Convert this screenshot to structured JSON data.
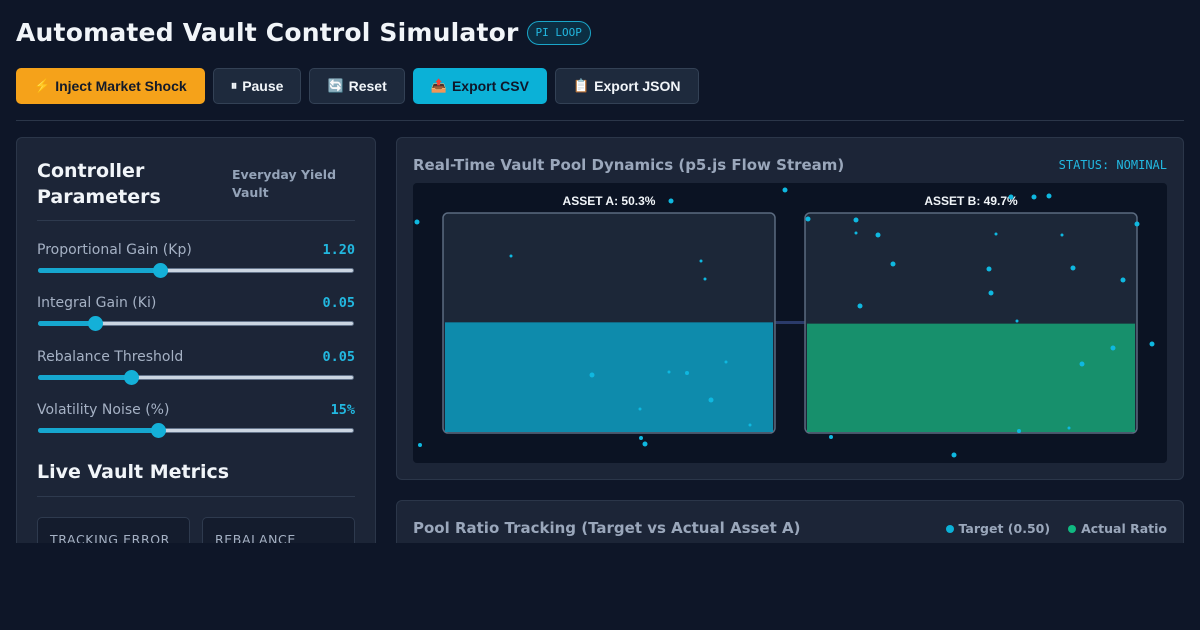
{
  "header": {
    "title": "Automated Vault Control Simulator",
    "badge": "PI LOOP"
  },
  "toolbar": {
    "shock": {
      "icon": "⚡",
      "label": "Inject Market Shock"
    },
    "pause": {
      "icon": "⏸",
      "label": "Pause"
    },
    "reset": {
      "icon": "🔄",
      "label": "Reset"
    },
    "export_csv": {
      "icon": "📤",
      "label": "Export CSV"
    },
    "export_json": {
      "icon": "📋",
      "label": "Export JSON"
    }
  },
  "controller": {
    "title": "Controller Parameters",
    "vault_name": "Everyday Yield Vault",
    "params": [
      {
        "label": "Proportional Gain (Kp)",
        "value": "1.20",
        "fraction": 0.385
      },
      {
        "label": "Integral Gain (Ki)",
        "value": "0.05",
        "fraction": 0.18
      },
      {
        "label": "Rebalance Threshold",
        "value": "0.05",
        "fraction": 0.295
      },
      {
        "label": "Volatility Noise (%)",
        "value": "15%",
        "fraction": 0.38
      }
    ]
  },
  "metrics": {
    "title": "Live Vault Metrics",
    "cards": [
      {
        "label": "TRACKING ERROR"
      },
      {
        "label": "REBALANCE"
      }
    ]
  },
  "pool_viz": {
    "title": "Real-Time Vault Pool Dynamics (p5.js Flow Stream)",
    "status": "STATUS: NOMINAL",
    "asset_a": {
      "label": "ASSET A: 50.3%",
      "fill_fraction": 0.503,
      "color": "#0e8bac"
    },
    "asset_b": {
      "label": "ASSET B: 49.7%",
      "fill_fraction": 0.497,
      "color": "#17906c"
    }
  },
  "ratio_chart": {
    "title": "Pool Ratio Tracking (Target vs Actual Asset A)",
    "legend": [
      {
        "label": "Target (0.50)",
        "color": "#0bb1d7"
      },
      {
        "label": "Actual Ratio",
        "color": "#10b981"
      }
    ]
  },
  "colors": {
    "accent": "#0bb1d7",
    "warning": "#f5a21a",
    "success": "#10b981",
    "background": "#0e1628"
  }
}
